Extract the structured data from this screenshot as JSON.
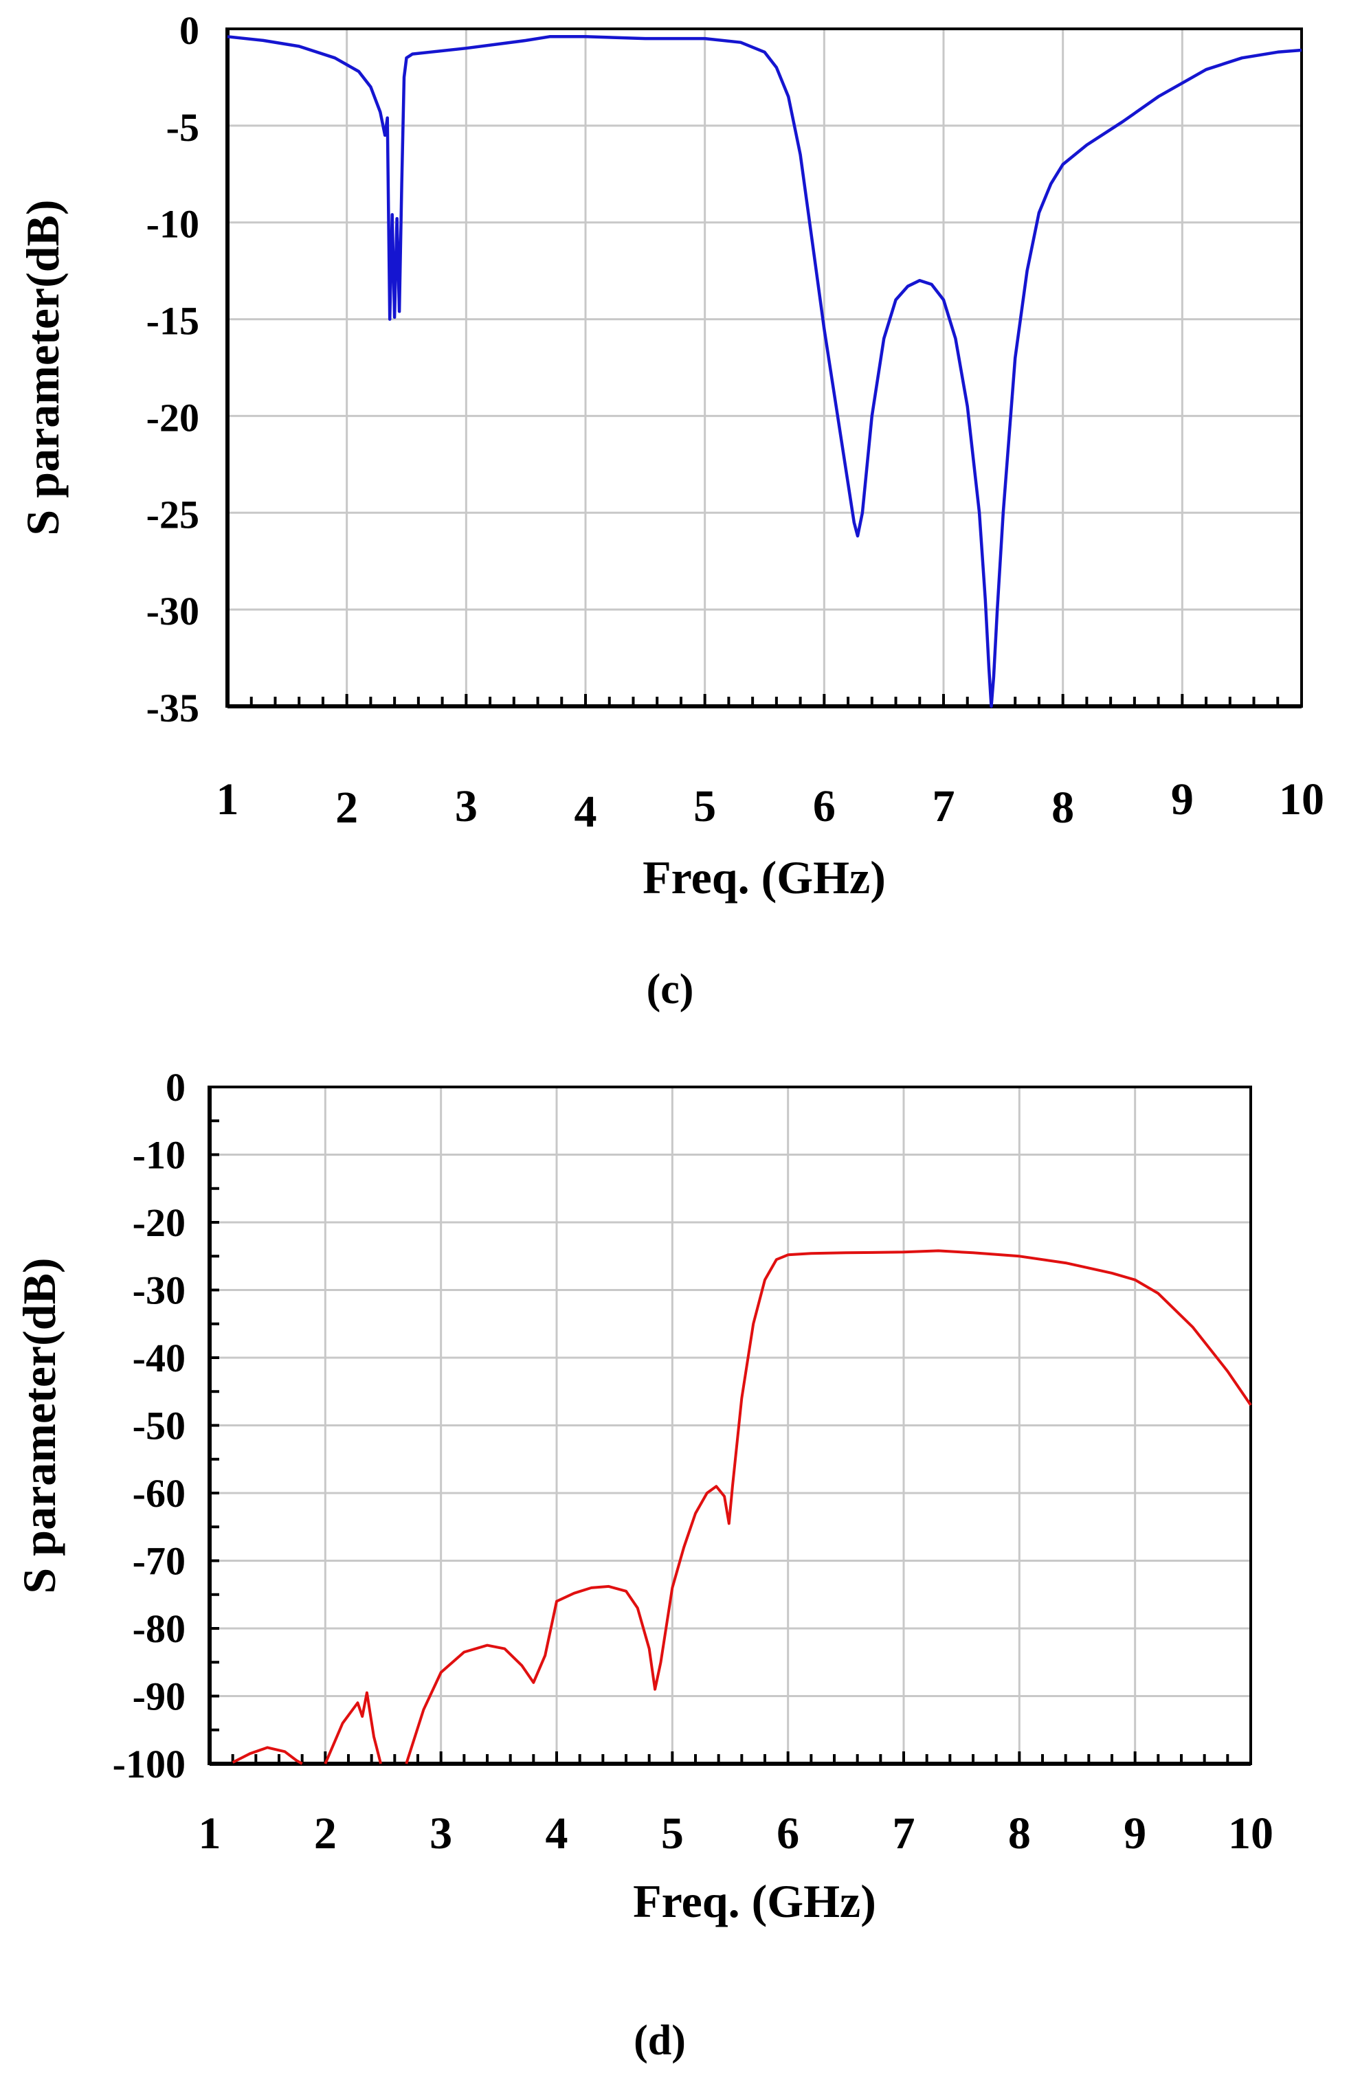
{
  "chart_data": [
    {
      "type": "line",
      "caption": "(c)",
      "xlabel": "Freq. (GHz)",
      "ylabel": "S parameter(dB)",
      "xlim": [
        1,
        10
      ],
      "ylim": [
        -35,
        0
      ],
      "xticks": [
        "1",
        "2",
        "3",
        "4",
        "5",
        "6",
        "7",
        "8",
        "9",
        "10"
      ],
      "yticks": [
        "0",
        "-5",
        "-10",
        "-15",
        "-20",
        "-25",
        "-30",
        "-35"
      ],
      "grid": true,
      "series": [
        {
          "color": "#1515d0",
          "x": [
            1.0,
            1.3,
            1.6,
            1.9,
            2.1,
            2.2,
            2.28,
            2.32,
            2.34,
            2.36,
            2.38,
            2.4,
            2.42,
            2.44,
            2.46,
            2.48,
            2.5,
            2.55,
            2.7,
            3.0,
            3.5,
            3.7,
            4.0,
            4.5,
            5.0,
            5.3,
            5.5,
            5.6,
            5.7,
            5.8,
            5.9,
            6.0,
            6.1,
            6.2,
            6.25,
            6.28,
            6.32,
            6.4,
            6.5,
            6.6,
            6.7,
            6.8,
            6.9,
            7.0,
            7.1,
            7.2,
            7.3,
            7.35,
            7.38,
            7.4,
            7.42,
            7.45,
            7.5,
            7.6,
            7.7,
            7.8,
            7.9,
            8.0,
            8.2,
            8.5,
            8.8,
            9.0,
            9.2,
            9.5,
            9.8,
            10.0
          ],
          "values": [
            -0.4,
            -0.6,
            -0.9,
            -1.5,
            -2.2,
            -3.0,
            -4.3,
            -5.5,
            -4.6,
            -15.0,
            -9.6,
            -14.9,
            -9.8,
            -14.6,
            -8.0,
            -2.5,
            -1.5,
            -1.3,
            -1.2,
            -1.0,
            -0.6,
            -0.4,
            -0.4,
            -0.5,
            -0.5,
            -0.7,
            -1.2,
            -2.0,
            -3.5,
            -6.5,
            -11.0,
            -15.5,
            -19.5,
            -23.5,
            -25.5,
            -26.2,
            -25.0,
            -20.0,
            -16.0,
            -14.0,
            -13.3,
            -13.0,
            -13.2,
            -14.0,
            -16.0,
            -19.5,
            -25.0,
            -29.5,
            -33.0,
            -35.0,
            -33.5,
            -30.0,
            -25.0,
            -17.0,
            -12.5,
            -9.5,
            -8.0,
            -7.0,
            -6.0,
            -4.8,
            -3.5,
            -2.8,
            -2.1,
            -1.5,
            -1.2,
            -1.1
          ]
        }
      ]
    },
    {
      "type": "line",
      "caption": "(d)",
      "xlabel": "Freq. (GHz)",
      "ylabel": "S parameter(dB)",
      "xlim": [
        1,
        10
      ],
      "ylim": [
        -100,
        0
      ],
      "xticks": [
        "1",
        "2",
        "3",
        "4",
        "5",
        "6",
        "7",
        "8",
        "9",
        "10"
      ],
      "yticks": [
        "0",
        "-10",
        "-20",
        "-30",
        "-40",
        "-50",
        "-60",
        "-70",
        "-80",
        "-90",
        "-100"
      ],
      "grid": true,
      "series": [
        {
          "color": "#e01010",
          "x": [
            1.2,
            1.35,
            1.5,
            1.65,
            1.75,
            1.8,
            null,
            2.0,
            2.15,
            2.28,
            2.32,
            2.36,
            2.42,
            2.48,
            null,
            2.7,
            2.85,
            3.0,
            3.2,
            3.4,
            3.55,
            3.7,
            3.8,
            3.9,
            4.0,
            4.15,
            4.3,
            4.45,
            4.6,
            4.7,
            4.8,
            4.85,
            4.9,
            5.0,
            5.1,
            5.2,
            5.3,
            5.38,
            5.45,
            5.49,
            5.52,
            5.6,
            5.7,
            5.8,
            5.9,
            6.0,
            6.2,
            6.5,
            7.0,
            7.3,
            7.6,
            8.0,
            8.4,
            8.8,
            9.0,
            9.2,
            9.5,
            9.8,
            10.0
          ],
          "values": [
            -99.8,
            -98.5,
            -97.6,
            -98.2,
            -99.5,
            -100,
            null,
            -100,
            -94.0,
            -91.0,
            -93.0,
            -89.5,
            -96.0,
            -100,
            null,
            -100,
            -92.0,
            -86.5,
            -83.5,
            -82.5,
            -83.0,
            -85.5,
            -88.0,
            -84.0,
            -76.0,
            -74.8,
            -74.0,
            -73.8,
            -74.5,
            -77.0,
            -83.0,
            -89.0,
            -85.0,
            -74.0,
            -68.0,
            -63.0,
            -60.0,
            -59.0,
            -60.5,
            -64.5,
            -59.0,
            -46.0,
            -35.0,
            -28.5,
            -25.5,
            -24.8,
            -24.6,
            -24.5,
            -24.4,
            -24.2,
            -24.5,
            -25.0,
            -26.0,
            -27.5,
            -28.5,
            -30.5,
            -35.5,
            -42.0,
            -47.0
          ]
        }
      ]
    }
  ]
}
